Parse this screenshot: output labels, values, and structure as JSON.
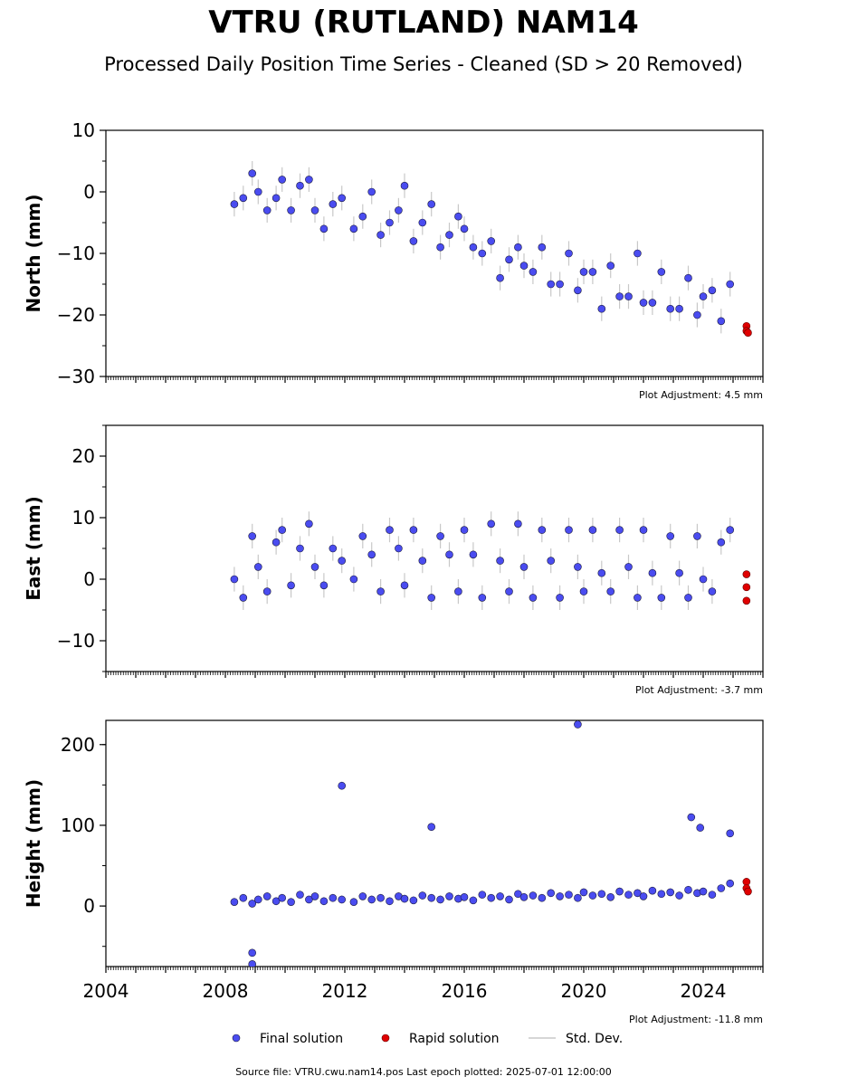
{
  "title": "VTRU (RUTLAND) NAM14",
  "subtitle": "Processed Daily Position Time Series - Cleaned (SD > 20 Removed)",
  "colors": {
    "final": "#4a4cf0",
    "final_edge": "#1a1a40",
    "rapid": "#e00000",
    "std": "#c8c8c8"
  },
  "legend": {
    "final": "Final solution",
    "rapid": "Rapid solution",
    "std": "Std. Dev."
  },
  "footer": "Source file: VTRU.cwu.nam14.pos  Last epoch plotted: 2025-07-01 12:00:00",
  "chart_data": [
    {
      "type": "scatter",
      "ylabel": "North (mm)",
      "ylim": [
        -30,
        10
      ],
      "yticks": [
        10,
        0,
        -10,
        -20,
        -30
      ],
      "xlim": [
        2004,
        2026
      ],
      "adjustment": "Plot Adjustment: 4.5 mm",
      "series": [
        {
          "name": "Final solution",
          "x": [
            2008.3,
            2008.6,
            2008.9,
            2009.1,
            2009.4,
            2009.7,
            2009.9,
            2010.2,
            2010.5,
            2010.8,
            2011.0,
            2011.3,
            2011.6,
            2011.9,
            2012.3,
            2012.6,
            2012.9,
            2013.2,
            2013.5,
            2013.8,
            2014.0,
            2014.3,
            2014.6,
            2014.9,
            2015.2,
            2015.5,
            2015.8,
            2016.0,
            2016.3,
            2016.6,
            2016.9,
            2017.2,
            2017.5,
            2017.8,
            2018.0,
            2018.3,
            2018.6,
            2018.9,
            2019.2,
            2019.5,
            2019.8,
            2020.0,
            2020.3,
            2020.6,
            2020.9,
            2021.2,
            2021.5,
            2021.8,
            2022.0,
            2022.3,
            2022.6,
            2022.9,
            2023.2,
            2023.5,
            2023.8,
            2024.0,
            2024.3,
            2024.6,
            2024.9
          ],
          "y": [
            -2,
            -1,
            3,
            0,
            -3,
            -1,
            2,
            -3,
            1,
            2,
            -3,
            -6,
            -2,
            -1,
            -6,
            -4,
            0,
            -7,
            -5,
            -3,
            1,
            -8,
            -5,
            -2,
            -9,
            -7,
            -4,
            -6,
            -9,
            -10,
            -8,
            -14,
            -11,
            -9,
            -12,
            -13,
            -9,
            -15,
            -15,
            -10,
            -16,
            -13,
            -13,
            -19,
            -12,
            -17,
            -17,
            -10,
            -18,
            -18,
            -13,
            -19,
            -19,
            -14,
            -20,
            -17,
            -16,
            -21,
            -15
          ],
          "err": [
            2,
            2,
            2,
            2,
            2,
            2,
            2,
            2,
            2,
            2,
            2,
            2,
            2,
            2,
            2,
            2,
            2,
            2,
            2,
            2,
            2,
            2,
            2,
            2,
            2,
            2,
            2,
            2,
            2,
            2,
            2,
            2,
            2,
            2,
            2,
            2,
            2,
            2,
            2,
            2,
            2,
            2,
            2,
            2,
            2,
            2,
            2,
            2,
            2,
            2,
            2,
            2,
            2,
            2,
            2,
            2,
            2,
            2,
            2
          ]
        },
        {
          "name": "Rapid solution",
          "x": [
            2025.45,
            2025.45,
            2025.5
          ],
          "y": [
            -21.8,
            -22.6,
            -22.9
          ]
        }
      ]
    },
    {
      "type": "scatter",
      "ylabel": "East (mm)",
      "ylim": [
        -15,
        25
      ],
      "yticks": [
        20,
        10,
        0,
        -10
      ],
      "xlim": [
        2004,
        2026
      ],
      "adjustment": "Plot Adjustment: -3.7 mm",
      "series": [
        {
          "name": "Final solution",
          "x": [
            2008.3,
            2008.6,
            2008.9,
            2009.1,
            2009.4,
            2009.7,
            2009.9,
            2010.2,
            2010.5,
            2010.8,
            2011.0,
            2011.3,
            2011.6,
            2011.9,
            2012.3,
            2012.6,
            2012.9,
            2013.2,
            2013.5,
            2013.8,
            2014.0,
            2014.3,
            2014.6,
            2014.9,
            2015.2,
            2015.5,
            2015.8,
            2016.0,
            2016.3,
            2016.6,
            2016.9,
            2017.2,
            2017.5,
            2017.8,
            2018.0,
            2018.3,
            2018.6,
            2018.9,
            2019.2,
            2019.5,
            2019.8,
            2020.0,
            2020.3,
            2020.6,
            2020.9,
            2021.2,
            2021.5,
            2021.8,
            2022.0,
            2022.3,
            2022.6,
            2022.9,
            2023.2,
            2023.5,
            2023.8,
            2024.0,
            2024.3,
            2024.6,
            2024.9
          ],
          "y": [
            0,
            -3,
            7,
            2,
            -2,
            6,
            8,
            -1,
            5,
            9,
            2,
            -1,
            5,
            3,
            0,
            7,
            4,
            -2,
            8,
            5,
            -1,
            8,
            3,
            -3,
            7,
            4,
            -2,
            8,
            4,
            -3,
            9,
            3,
            -2,
            9,
            2,
            -3,
            8,
            3,
            -3,
            8,
            2,
            -2,
            8,
            1,
            -2,
            8,
            2,
            -3,
            8,
            1,
            -3,
            7,
            1,
            -3,
            7,
            0,
            -2,
            6,
            8
          ],
          "err": [
            2,
            2,
            2,
            2,
            2,
            2,
            2,
            2,
            2,
            2,
            2,
            2,
            2,
            2,
            2,
            2,
            2,
            2,
            2,
            2,
            2,
            2,
            2,
            2,
            2,
            2,
            2,
            2,
            2,
            2,
            2,
            2,
            2,
            2,
            2,
            2,
            2,
            2,
            2,
            2,
            2,
            2,
            2,
            2,
            2,
            2,
            2,
            2,
            2,
            2,
            2,
            2,
            2,
            2,
            2,
            2,
            2,
            2,
            2
          ]
        },
        {
          "name": "Rapid solution",
          "x": [
            2025.45,
            2025.45,
            2025.45
          ],
          "y": [
            0.8,
            -1.3,
            -3.5
          ]
        }
      ]
    },
    {
      "type": "scatter",
      "ylabel": "Height (mm)",
      "ylim": [
        -75,
        230
      ],
      "yticks": [
        200,
        100,
        0
      ],
      "xlim": [
        2004,
        2026
      ],
      "xticks": [
        2004,
        2008,
        2012,
        2016,
        2020,
        2024
      ],
      "adjustment": "Plot Adjustment: -11.8 mm",
      "series": [
        {
          "name": "Final solution",
          "x": [
            2008.3,
            2008.6,
            2008.9,
            2009.1,
            2009.4,
            2009.7,
            2009.9,
            2010.2,
            2010.5,
            2010.8,
            2011.0,
            2011.3,
            2011.6,
            2011.9,
            2012.3,
            2012.6,
            2012.9,
            2013.2,
            2013.5,
            2013.8,
            2014.0,
            2014.3,
            2014.6,
            2014.9,
            2015.2,
            2015.5,
            2015.8,
            2016.0,
            2016.3,
            2016.6,
            2016.9,
            2017.2,
            2017.5,
            2017.8,
            2018.0,
            2018.3,
            2018.6,
            2018.9,
            2019.2,
            2019.5,
            2019.8,
            2020.0,
            2020.3,
            2020.6,
            2020.9,
            2021.2,
            2021.5,
            2021.8,
            2022.0,
            2022.3,
            2022.6,
            2022.9,
            2023.2,
            2023.5,
            2023.8,
            2024.0,
            2024.3,
            2024.6,
            2024.9,
            2008.9,
            2008.9,
            2011.9,
            2014.9,
            2019.8,
            2023.6,
            2023.9,
            2024.9
          ],
          "y": [
            5,
            10,
            3,
            8,
            12,
            6,
            10,
            5,
            14,
            8,
            12,
            6,
            10,
            8,
            5,
            12,
            8,
            10,
            6,
            12,
            9,
            7,
            13,
            10,
            8,
            12,
            9,
            11,
            7,
            14,
            10,
            12,
            8,
            15,
            11,
            13,
            10,
            16,
            12,
            14,
            10,
            17,
            13,
            15,
            11,
            18,
            14,
            16,
            12,
            19,
            15,
            17,
            13,
            20,
            16,
            18,
            14,
            22,
            28,
            -58,
            -72,
            149,
            98,
            225,
            110,
            97,
            90
          ],
          "err": [
            5,
            5,
            5,
            5,
            5,
            5,
            5,
            5,
            5,
            5,
            5,
            5,
            5,
            5,
            5,
            5,
            5,
            5,
            5,
            5,
            5,
            5,
            5,
            5,
            5,
            5,
            5,
            5,
            5,
            5,
            5,
            5,
            5,
            5,
            5,
            5,
            5,
            5,
            5,
            5,
            5,
            5,
            5,
            5,
            5,
            5,
            5,
            5,
            5,
            5,
            5,
            5,
            5,
            5,
            5,
            5,
            5,
            5,
            5,
            5,
            5,
            5,
            5,
            5,
            5,
            5,
            5
          ]
        },
        {
          "name": "Rapid solution",
          "x": [
            2025.45,
            2025.45,
            2025.5
          ],
          "y": [
            30,
            22,
            18
          ]
        }
      ]
    }
  ]
}
